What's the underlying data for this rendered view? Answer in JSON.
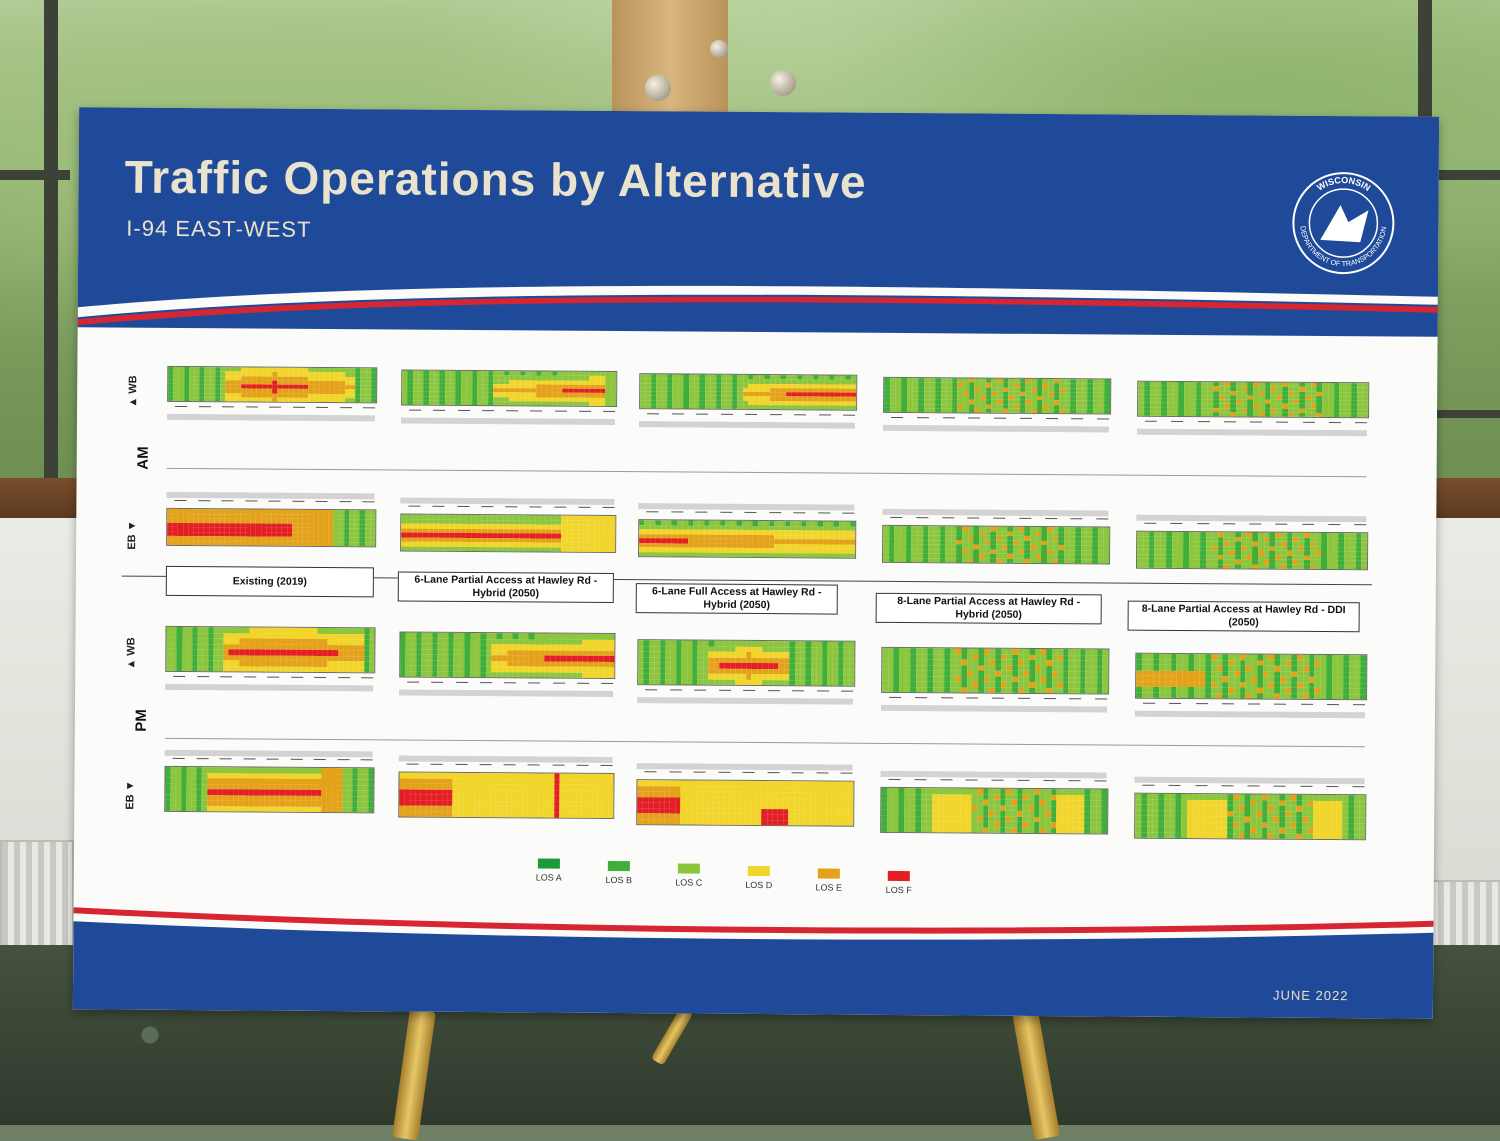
{
  "board": {
    "title": "Traffic Operations by Alternative",
    "subtitle": "I-94 EAST-WEST",
    "date": "JUNE 2022",
    "seal_text_top": "WISCONSIN",
    "seal_text_bottom": "DEPARTMENT OF TRANSPORTATION"
  },
  "labels": {
    "am": "AM",
    "pm": "PM",
    "wb": "WB",
    "eb": "EB"
  },
  "alternatives": [
    "Existing (2019)",
    "6-Lane Partial Access at Hawley Rd - Hybrid (2050)",
    "6-Lane Full Access at Hawley Rd - Hybrid (2050)",
    "8-Lane Partial Access at Hawley Rd - Hybrid (2050)",
    "8-Lane Partial Access at Hawley Rd - DDI (2050)"
  ],
  "legend": [
    {
      "label": "LOS A",
      "color": "#1a9a3a"
    },
    {
      "label": "LOS B",
      "color": "#3fae3a"
    },
    {
      "label": "LOS C",
      "color": "#8cc63f"
    },
    {
      "label": "LOS D",
      "color": "#f1d52a"
    },
    {
      "label": "LOS E",
      "color": "#e3a21a"
    },
    {
      "label": "LOS F",
      "color": "#e31e24"
    }
  ]
}
